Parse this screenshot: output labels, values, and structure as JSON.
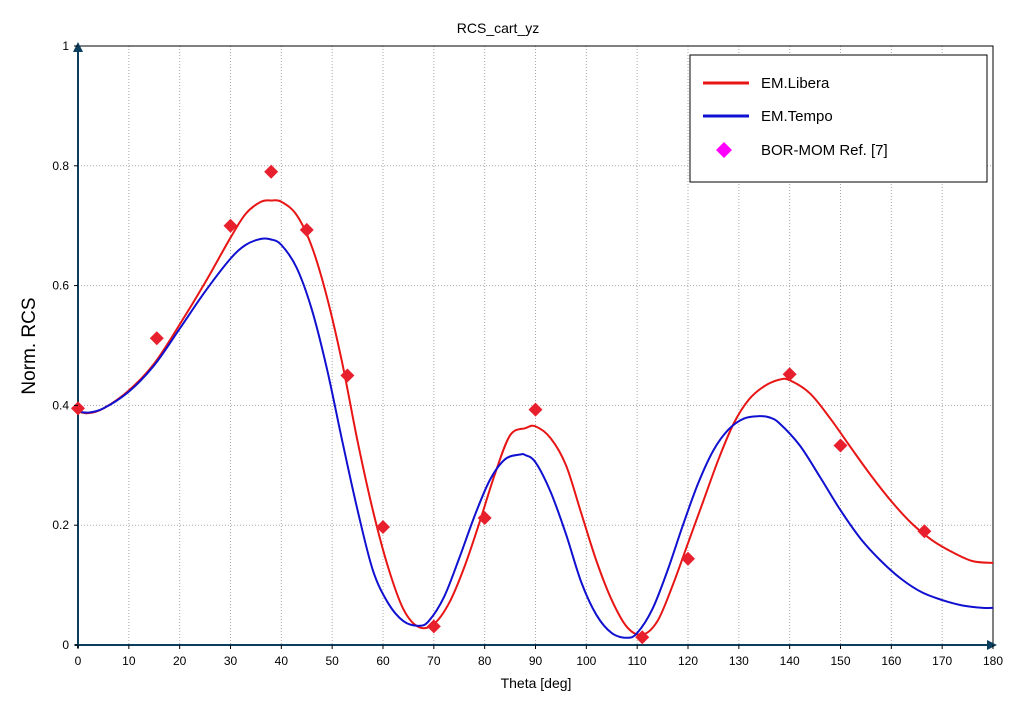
{
  "chart_data": {
    "type": "line",
    "title": "RCS_cart_yz",
    "xlabel": "Theta [deg]",
    "ylabel": "Norm. RCS",
    "xlim": [
      0,
      180
    ],
    "ylim": [
      0,
      1
    ],
    "grid": true,
    "legend_position": "top-right",
    "x_ticks": [
      0,
      10,
      20,
      30,
      40,
      50,
      60,
      70,
      80,
      90,
      100,
      110,
      120,
      130,
      140,
      150,
      160,
      170,
      180
    ],
    "y_ticks": [
      0,
      0.2,
      0.4,
      0.6,
      0.8,
      1
    ],
    "x_tick_labels": [
      "0",
      "10",
      "20",
      "30",
      "40",
      "50",
      "60",
      "70",
      "80",
      "90",
      "100",
      "110",
      "120",
      "130",
      "140",
      "150",
      "160",
      "170",
      "180"
    ],
    "y_tick_labels": [
      "0",
      "0.2",
      "0.4",
      "0.6",
      "0.8",
      "1"
    ],
    "series": [
      {
        "name": "EM.Libera",
        "color": "#e81515",
        "kind": "line",
        "x": [
          0,
          2,
          5,
          10,
          15,
          20,
          25,
          30,
          33,
          36,
          38,
          40,
          43,
          46,
          49,
          52,
          55,
          58,
          61,
          64,
          67,
          70,
          73,
          76,
          79,
          82,
          85,
          88,
          90,
          93,
          96,
          99,
          102,
          105,
          108,
          111,
          114,
          117,
          120,
          123,
          126,
          129,
          132,
          135,
          138,
          140,
          144,
          148,
          152,
          156,
          160,
          164,
          168,
          172,
          176,
          180
        ],
        "y": [
          0.39,
          0.387,
          0.395,
          0.425,
          0.47,
          0.535,
          0.605,
          0.68,
          0.72,
          0.74,
          0.742,
          0.74,
          0.718,
          0.665,
          0.58,
          0.47,
          0.34,
          0.225,
          0.13,
          0.06,
          0.03,
          0.035,
          0.07,
          0.13,
          0.205,
          0.285,
          0.35,
          0.362,
          0.365,
          0.345,
          0.3,
          0.22,
          0.14,
          0.075,
          0.03,
          0.017,
          0.04,
          0.1,
          0.17,
          0.24,
          0.31,
          0.37,
          0.41,
          0.432,
          0.443,
          0.442,
          0.42,
          0.378,
          0.33,
          0.283,
          0.24,
          0.203,
          0.175,
          0.155,
          0.14,
          0.137
        ]
      },
      {
        "name": "EM.Tempo",
        "color": "#1010d0",
        "kind": "line",
        "x": [
          0,
          2,
          5,
          10,
          15,
          20,
          25,
          30,
          33,
          36,
          38,
          40,
          43,
          46,
          49,
          52,
          55,
          58,
          61,
          64,
          67,
          69,
          72,
          75,
          78,
          81,
          84,
          87,
          88,
          90,
          93,
          96,
          99,
          102,
          105,
          108,
          110,
          113,
          116,
          119,
          122,
          125,
          128,
          131,
          134,
          136,
          138,
          142,
          146,
          150,
          154,
          158,
          162,
          166,
          170,
          174,
          178,
          180
        ],
        "y": [
          0.39,
          0.388,
          0.395,
          0.423,
          0.467,
          0.528,
          0.59,
          0.645,
          0.668,
          0.678,
          0.677,
          0.668,
          0.63,
          0.56,
          0.46,
          0.34,
          0.225,
          0.125,
          0.07,
          0.04,
          0.032,
          0.04,
          0.08,
          0.145,
          0.215,
          0.275,
          0.31,
          0.318,
          0.317,
          0.305,
          0.255,
          0.185,
          0.105,
          0.05,
          0.02,
          0.012,
          0.02,
          0.06,
          0.125,
          0.2,
          0.27,
          0.325,
          0.36,
          0.378,
          0.382,
          0.38,
          0.37,
          0.333,
          0.28,
          0.225,
          0.177,
          0.14,
          0.11,
          0.088,
          0.075,
          0.066,
          0.062,
          0.062
        ]
      },
      {
        "name": "BOR-MOM Ref. [7]",
        "color": "#e8202e",
        "legend_color": "#ff00ff",
        "kind": "marker",
        "x": [
          0,
          15.5,
          30,
          38,
          45,
          53,
          60,
          70,
          80,
          90,
          111,
          120,
          140,
          150,
          166.5
        ],
        "y": [
          0.395,
          0.512,
          0.7,
          0.79,
          0.693,
          0.45,
          0.197,
          0.031,
          0.212,
          0.393,
          0.013,
          0.144,
          0.452,
          0.333,
          0.19
        ]
      }
    ]
  }
}
